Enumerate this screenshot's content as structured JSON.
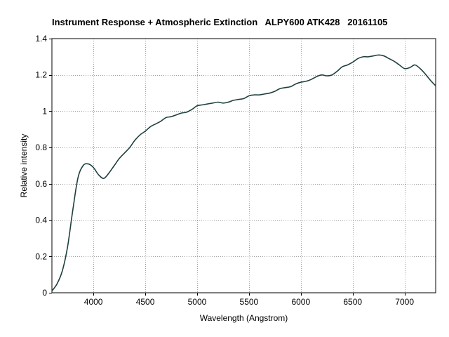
{
  "chart_data": {
    "type": "line",
    "title": "Instrument Response + Atmospheric Extinction   ALPY600 ATK428   20161105",
    "xlabel": "Wavelength (Angstrom)",
    "ylabel": "Relative intensity",
    "xlim": [
      3600,
      7300
    ],
    "ylim": [
      0,
      1.4
    ],
    "xticks": [
      4000,
      4500,
      5000,
      5500,
      6000,
      6500,
      7000
    ],
    "xtick_labels": [
      "4000",
      "4500",
      "5000",
      "5500",
      "6000",
      "6500",
      "7000"
    ],
    "yticks": [
      0,
      0.2,
      0.4,
      0.6,
      0.8,
      1,
      1.2,
      1.4
    ],
    "ytick_labels": [
      "0",
      "0.2",
      "0.4",
      "0.6",
      "0.8",
      "1",
      "1.2",
      "1.4"
    ],
    "grid": true,
    "line_color": "#1f3f3f",
    "series": [
      {
        "name": "",
        "x": [
          3600,
          3650,
          3700,
          3750,
          3800,
          3850,
          3900,
          3950,
          4000,
          4050,
          4100,
          4150,
          4200,
          4250,
          4300,
          4350,
          4400,
          4450,
          4500,
          4550,
          4600,
          4650,
          4700,
          4750,
          4800,
          4850,
          4900,
          4950,
          5000,
          5050,
          5100,
          5150,
          5200,
          5250,
          5300,
          5350,
          5400,
          5450,
          5500,
          5550,
          5600,
          5650,
          5700,
          5750,
          5800,
          5850,
          5900,
          5950,
          6000,
          6050,
          6100,
          6150,
          6200,
          6250,
          6300,
          6350,
          6400,
          6450,
          6500,
          6550,
          6600,
          6650,
          6700,
          6750,
          6800,
          6850,
          6900,
          6950,
          7000,
          7050,
          7100,
          7150,
          7200,
          7250,
          7300
        ],
        "y": [
          0.01,
          0.05,
          0.12,
          0.25,
          0.45,
          0.63,
          0.7,
          0.71,
          0.69,
          0.65,
          0.63,
          0.66,
          0.7,
          0.74,
          0.77,
          0.8,
          0.84,
          0.87,
          0.89,
          0.915,
          0.93,
          0.945,
          0.965,
          0.97,
          0.98,
          0.99,
          0.995,
          1.01,
          1.03,
          1.035,
          1.04,
          1.045,
          1.05,
          1.045,
          1.05,
          1.06,
          1.065,
          1.07,
          1.085,
          1.09,
          1.09,
          1.095,
          1.1,
          1.11,
          1.125,
          1.13,
          1.135,
          1.15,
          1.16,
          1.165,
          1.175,
          1.19,
          1.2,
          1.195,
          1.2,
          1.22,
          1.245,
          1.255,
          1.27,
          1.29,
          1.3,
          1.3,
          1.305,
          1.31,
          1.305,
          1.29,
          1.275,
          1.255,
          1.235,
          1.24,
          1.255,
          1.235,
          1.205,
          1.17,
          1.14
        ]
      }
    ]
  }
}
